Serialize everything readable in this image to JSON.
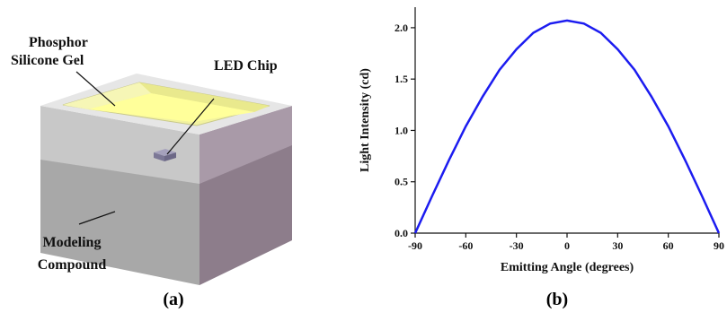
{
  "panel_a": {
    "labels": {
      "phosphor_line1": "Phosphor",
      "phosphor_line2": "Silicone Gel",
      "led_chip": "LED Chip",
      "modeling_line1": "Modeling",
      "modeling_line2": "Compound"
    },
    "caption": "(a)",
    "colors": {
      "gel": "#f2f2a0",
      "top_rim": "#e6e6e6",
      "front_upper": "#c8c8c8",
      "front_lower": "#a8a8a8",
      "side_upper": "#a99aa8",
      "side_lower": "#8d7d8b",
      "chip": "#8e8aa6"
    }
  },
  "panel_b": {
    "caption": "(b)",
    "line_color": "#1c1cf0"
  },
  "chart_data": {
    "type": "line",
    "title": "",
    "xlabel": "Emitting Angle (degrees)",
    "ylabel": "Light Intensity (cd)",
    "xlim": [
      -90,
      90
    ],
    "ylim": [
      0,
      2.2
    ],
    "xticks": [
      -90,
      -60,
      -30,
      0,
      30,
      60,
      90
    ],
    "xtick_labels": [
      "-90",
      "-60",
      "-30",
      "0",
      "30",
      "60",
      "90"
    ],
    "yticks": [
      0.0,
      0.5,
      1.0,
      1.5,
      2.0
    ],
    "ytick_labels": [
      "0.0",
      "0.5",
      "1.0",
      "1.5",
      "2.0"
    ],
    "grid": false,
    "series": [
      {
        "x": [
          -90,
          -80,
          -70,
          -60,
          -50,
          -40,
          -30,
          -20,
          -10,
          0,
          10,
          20,
          30,
          40,
          50,
          60,
          70,
          80,
          90
        ],
        "y": [
          0.0,
          0.36,
          0.71,
          1.04,
          1.33,
          1.59,
          1.79,
          1.95,
          2.04,
          2.07,
          2.04,
          1.95,
          1.79,
          1.59,
          1.33,
          1.04,
          0.71,
          0.36,
          0.0
        ]
      }
    ]
  }
}
